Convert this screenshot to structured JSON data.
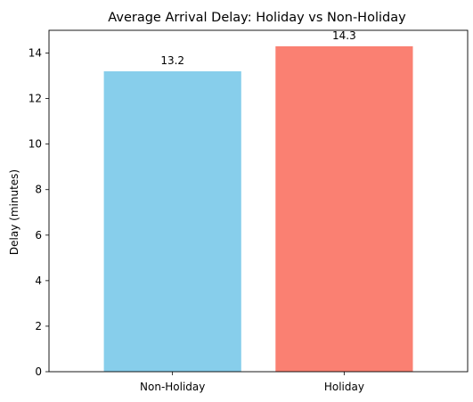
{
  "chart_data": {
    "type": "bar",
    "title": "Average Arrival Delay: Holiday vs Non-Holiday",
    "xlabel": "",
    "ylabel": "Delay (minutes)",
    "categories": [
      "Non-Holiday",
      "Holiday"
    ],
    "values": [
      13.2,
      14.3
    ],
    "value_labels": [
      "13.2",
      "14.3"
    ],
    "colors": [
      "#87CEEB",
      "#FA8072"
    ],
    "ylim": [
      0,
      15
    ],
    "yticks": [
      0,
      2,
      4,
      6,
      8,
      10,
      12,
      14
    ],
    "ytick_labels": [
      "0",
      "2",
      "4",
      "6",
      "8",
      "10",
      "12",
      "14"
    ],
    "grid": false,
    "legend": "none"
  }
}
